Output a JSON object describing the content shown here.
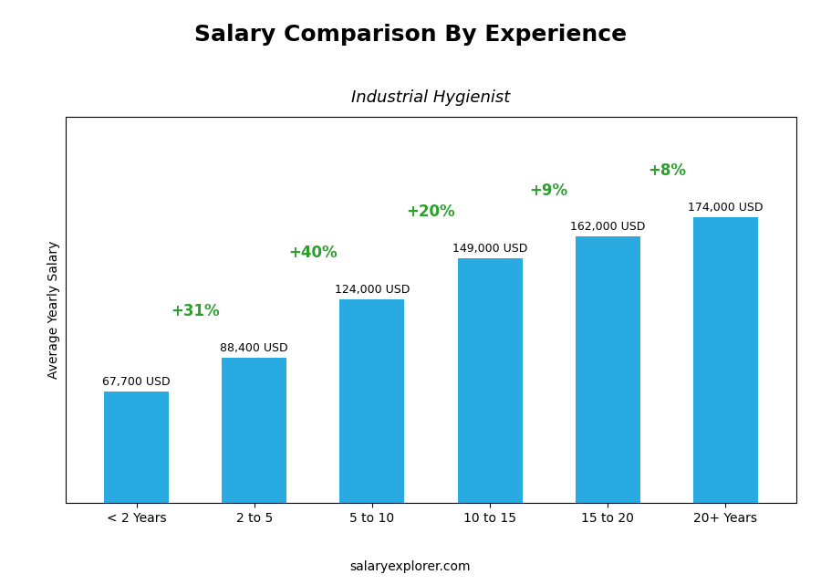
{
  "chart_data": {
    "type": "bar",
    "title": "Salary Comparison By Experience",
    "subtitle": "Industrial Hygienist",
    "y_label": "Average Yearly Salary",
    "watermark": "salaryexplorer.com",
    "categories": [
      "< 2 Years",
      "2 to 5",
      "5 to 10",
      "10 to 15",
      "15 to 20",
      "20+ Years"
    ],
    "values": [
      67700,
      88400,
      124000,
      149000,
      162000,
      174000
    ],
    "value_labels": [
      "67,700 USD",
      "88,400 USD",
      "124,000 USD",
      "149,000 USD",
      "162,000 USD",
      "174,000 USD"
    ],
    "annotations": [
      "+31%",
      "+40%",
      "+20%",
      "+9%",
      "+8%"
    ],
    "color": "#29ABE2",
    "ylim": [
      0,
      234900
    ],
    "yticks": [],
    "tick_labels": "x",
    "data_labels": true,
    "grid": false
  }
}
